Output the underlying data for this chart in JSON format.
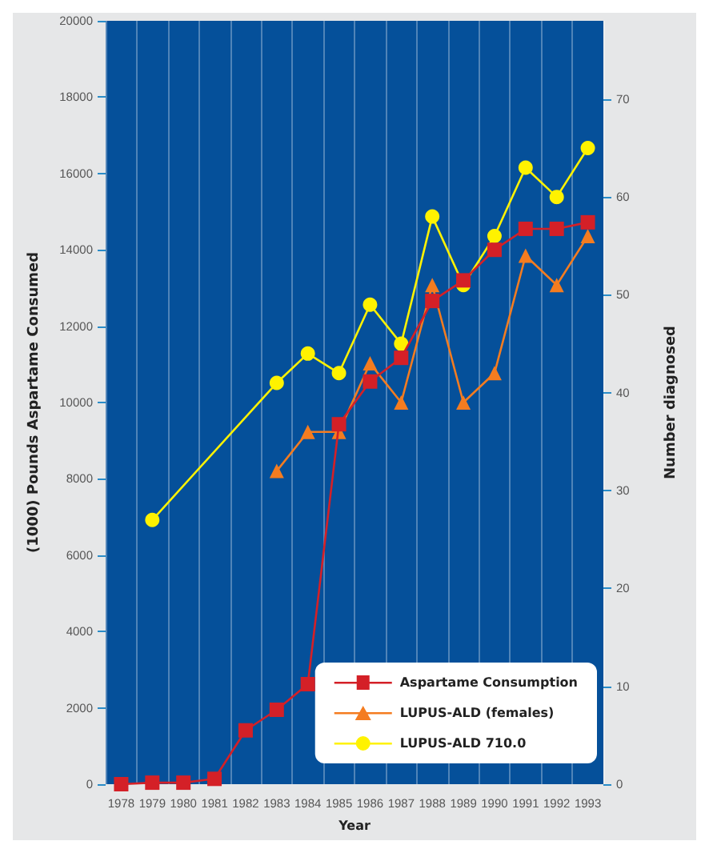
{
  "chart_data": {
    "type": "line",
    "xlabel": "Year",
    "ylabel": "(1000) Pounds Aspartame Consumed",
    "y2label": "Number diagnosed",
    "categories": [
      "1978",
      "1979",
      "1980",
      "1981",
      "1982",
      "1983",
      "1984",
      "1985",
      "1986",
      "1987",
      "1988",
      "1989",
      "1990",
      "1991",
      "1992",
      "1993"
    ],
    "series": [
      {
        "name": "Aspartame Consumption",
        "color": "#d42027",
        "marker": "square",
        "values": [
          0,
          40,
          40,
          140,
          1410,
          1950,
          2620,
          9430,
          10550,
          11170,
          12660,
          13200,
          14000,
          14550,
          14550,
          14720
        ]
      },
      {
        "name": "LUPUS-ALD (females)",
        "color": "#f47c20",
        "marker": "triangle",
        "axis": "y2",
        "values": [
          null,
          null,
          null,
          null,
          null,
          32,
          36,
          36,
          43,
          39,
          51,
          39,
          42,
          54,
          51,
          56
        ]
      },
      {
        "name": "LUPUS-ALD 710.0",
        "color": "#fff200",
        "marker": "circle",
        "axis": "y2",
        "values": [
          null,
          27,
          null,
          null,
          null,
          41,
          44,
          42,
          49,
          45,
          58,
          51,
          56,
          63,
          60,
          65
        ]
      }
    ],
    "ylim": [
      0,
      20000
    ],
    "yticks": [
      0,
      2000,
      4000,
      6000,
      8000,
      10000,
      12000,
      14000,
      16000,
      18000,
      20000
    ],
    "y2lim": [
      0,
      78
    ],
    "y2ticks": [
      0,
      10,
      20,
      30,
      40,
      50,
      60,
      70
    ],
    "grid": "x",
    "legend": "bottom right"
  }
}
